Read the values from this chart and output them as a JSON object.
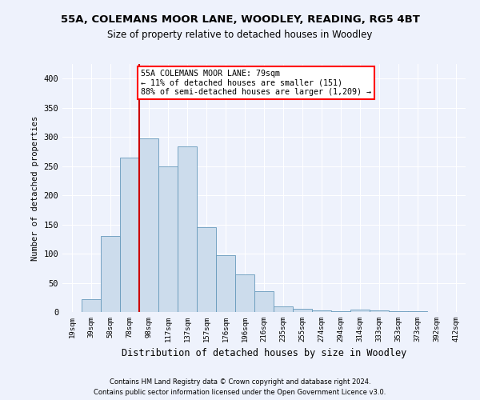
{
  "title1": "55A, COLEMANS MOOR LANE, WOODLEY, READING, RG5 4BT",
  "title2": "Size of property relative to detached houses in Woodley",
  "xlabel": "Distribution of detached houses by size in Woodley",
  "ylabel": "Number of detached properties",
  "footnote1": "Contains HM Land Registry data © Crown copyright and database right 2024.",
  "footnote2": "Contains public sector information licensed under the Open Government Licence v3.0.",
  "categories": [
    "19sqm",
    "39sqm",
    "58sqm",
    "78sqm",
    "98sqm",
    "117sqm",
    "137sqm",
    "157sqm",
    "176sqm",
    "196sqm",
    "216sqm",
    "235sqm",
    "255sqm",
    "274sqm",
    "294sqm",
    "314sqm",
    "333sqm",
    "353sqm",
    "373sqm",
    "392sqm",
    "412sqm"
  ],
  "values": [
    0,
    22,
    130,
    265,
    298,
    250,
    284,
    146,
    97,
    65,
    36,
    10,
    5,
    3,
    1,
    4,
    3,
    1,
    1,
    0,
    0
  ],
  "bar_color": "#ccdcec",
  "bar_edge_color": "#6699bb",
  "bg_color": "#eef2fc",
  "grid_color": "#ffffff",
  "vline_color": "#cc0000",
  "annotation_text1": "55A COLEMANS MOOR LANE: 79sqm",
  "annotation_text2": "← 11% of detached houses are smaller (151)",
  "annotation_text3": "88% of semi-detached houses are larger (1,209) →",
  "ylim": [
    0,
    425
  ],
  "yticks": [
    0,
    50,
    100,
    150,
    200,
    250,
    300,
    350,
    400
  ]
}
